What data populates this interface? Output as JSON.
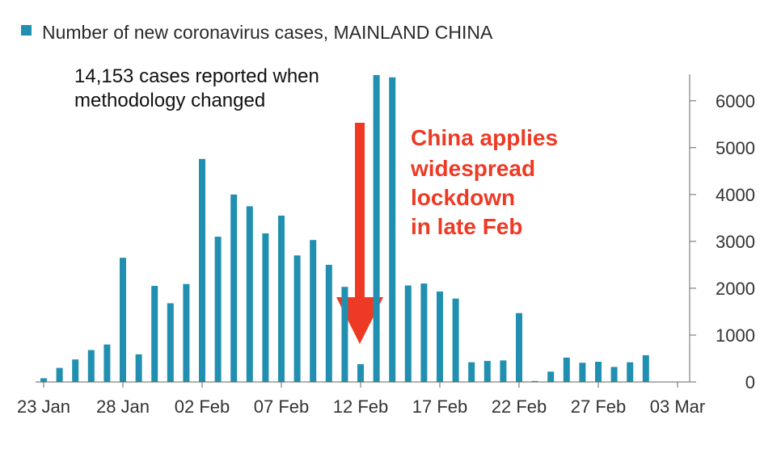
{
  "chart_data": {
    "type": "bar",
    "legend": "Number of new coronavirus cases, MAINLAND CHINA",
    "series_color": "#2190b0",
    "x": [
      "23 Jan",
      "24 Jan",
      "25 Jan",
      "26 Jan",
      "27 Jan",
      "28 Jan",
      "29 Jan",
      "30 Jan",
      "31 Jan",
      "01 Feb",
      "02 Feb",
      "03 Feb",
      "04 Feb",
      "05 Feb",
      "06 Feb",
      "07 Feb",
      "08 Feb",
      "09 Feb",
      "10 Feb",
      "11 Feb",
      "12 Feb",
      "13 Feb",
      "14 Feb",
      "15 Feb",
      "16 Feb",
      "17 Feb",
      "18 Feb",
      "19 Feb",
      "20 Feb",
      "21 Feb",
      "22 Feb",
      "23 Feb",
      "24 Feb",
      "25 Feb",
      "26 Feb",
      "27 Feb",
      "28 Feb",
      "29 Feb",
      "01 Mar"
    ],
    "values": [
      80,
      300,
      480,
      680,
      800,
      2650,
      590,
      2050,
      1680,
      2090,
      4760,
      3100,
      4000,
      3750,
      3170,
      3550,
      2700,
      3030,
      2500,
      2030,
      380,
      6550,
      6500,
      2060,
      2100,
      1930,
      1780,
      420,
      450,
      460,
      1470,
      20,
      220,
      520,
      410,
      430,
      320,
      420,
      570
    ],
    "xticks": [
      "23 Jan",
      "28 Jan",
      "02 Feb",
      "07 Feb",
      "12 Feb",
      "17 Feb",
      "22 Feb",
      "27 Feb",
      "03 Mar"
    ],
    "yticks": [
      0,
      1000,
      2000,
      3000,
      4000,
      5000,
      6000
    ],
    "ylim": [
      0,
      6600
    ],
    "y_axis_position": "right",
    "grid": false,
    "annotations": {
      "methodology_line1": "14,153 cases reported when",
      "methodology_line2": "methodology changed",
      "lockdown_line1": "China applies",
      "lockdown_line2": "widespread",
      "lockdown_line3": "lockdown",
      "lockdown_line4": "in late Feb",
      "lockdown_color": "#ee3a24"
    }
  }
}
